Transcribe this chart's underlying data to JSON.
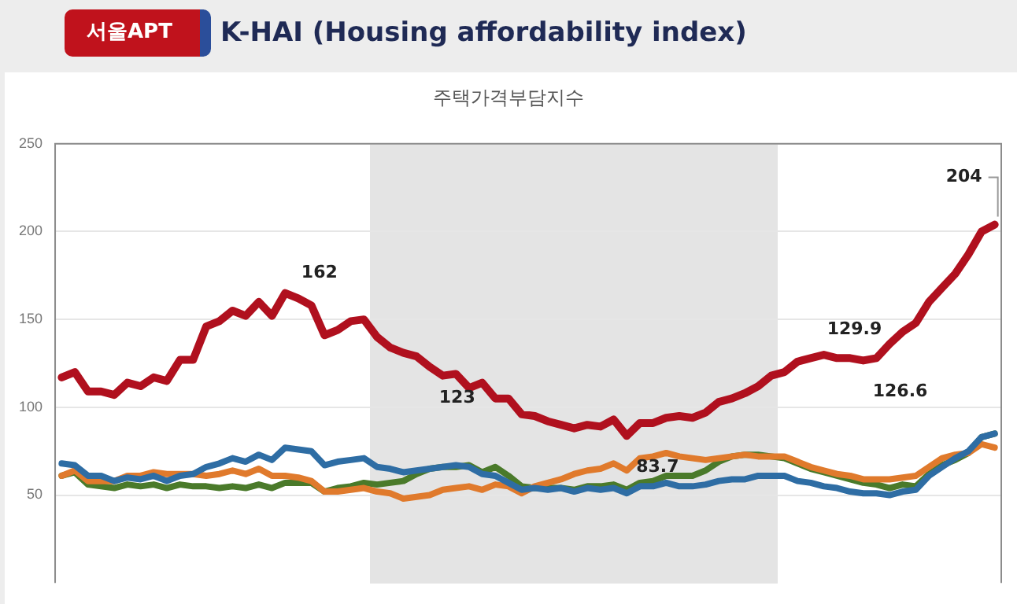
{
  "chart_data": {
    "type": "line",
    "title": "K-HAI (Housing affordability index)",
    "subtitle": "주택가격부담지수",
    "categories": [
      null,
      null,
      null,
      null,
      null,
      null,
      null,
      null,
      null,
      null,
      null,
      null,
      null,
      null,
      null,
      null,
      null,
      null,
      null,
      null,
      null,
      null,
      null,
      null,
      null,
      null,
      null,
      null,
      null,
      null,
      null,
      null,
      null,
      null,
      null,
      null,
      null,
      null,
      null,
      null,
      null,
      null,
      null,
      null,
      null,
      null,
      null,
      null,
      null,
      null,
      null,
      null,
      null,
      null,
      null,
      null,
      null,
      null,
      null,
      null,
      null,
      null,
      null,
      null,
      null,
      null,
      null,
      null,
      null,
      null,
      null,
      null
    ],
    "series": [
      {
        "color": "#b0101e",
        "values": [
          117,
          120,
          109,
          109,
          107,
          114,
          112,
          117,
          115,
          127,
          127,
          146,
          149,
          155,
          152,
          160,
          152,
          165,
          162,
          158,
          141,
          144,
          149,
          150,
          140,
          134,
          131,
          129,
          123,
          118,
          119,
          111,
          114,
          105,
          105,
          96,
          95,
          92,
          90,
          88,
          90,
          89,
          93,
          83.7,
          91,
          91,
          94,
          95,
          94,
          97,
          103,
          105,
          108,
          112,
          118,
          120,
          126,
          128,
          129.9,
          128,
          128,
          126.6,
          128,
          136,
          143,
          148,
          160,
          168,
          176,
          187,
          200,
          204
        ],
        "value_labels": [
          null,
          null,
          null,
          null,
          null,
          null,
          null,
          null,
          null,
          null,
          null,
          null,
          null,
          null,
          null,
          null,
          null,
          null,
          "162",
          null,
          null,
          null,
          null,
          null,
          null,
          null,
          null,
          null,
          "123",
          null,
          null,
          null,
          null,
          null,
          null,
          null,
          null,
          null,
          null,
          null,
          null,
          null,
          null,
          "83.7",
          null,
          null,
          null,
          null,
          null,
          null,
          null,
          null,
          null,
          null,
          null,
          null,
          null,
          null,
          "129.9",
          null,
          null,
          "126.6",
          null,
          null,
          null,
          null,
          null,
          null,
          null,
          null,
          null,
          "204"
        ]
      },
      {
        "color": "#2e6da4",
        "values": [
          68,
          67,
          61,
          61,
          58,
          60,
          59,
          61,
          58,
          61,
          62,
          66,
          68,
          71,
          69,
          73,
          70,
          77,
          76,
          75,
          67,
          69,
          70,
          71,
          66,
          65,
          63,
          64,
          65,
          66,
          67,
          66,
          62,
          61,
          57,
          53,
          54,
          53,
          54,
          52,
          54,
          53,
          54,
          51,
          55,
          55,
          57,
          55,
          55,
          56,
          58,
          59,
          59,
          61,
          61,
          61,
          58,
          57,
          55,
          54,
          52,
          51,
          51,
          50,
          52,
          53,
          61,
          66,
          71,
          75,
          83,
          85
        ]
      },
      {
        "color": "#e07a2c",
        "values": [
          61,
          64,
          58,
          58,
          58,
          61,
          61,
          63,
          62,
          62,
          62,
          61,
          62,
          64,
          62,
          65,
          61,
          61,
          60,
          58,
          52,
          52,
          53,
          54,
          52,
          51,
          48,
          49,
          50,
          53,
          54,
          55,
          53,
          56,
          55,
          51,
          55,
          57,
          59,
          62,
          64,
          65,
          68,
          64,
          71,
          72,
          74,
          72,
          71,
          70,
          71,
          72,
          73,
          72,
          72,
          72,
          69,
          66,
          64,
          62,
          61,
          59,
          59,
          59,
          60,
          61,
          66,
          71,
          73,
          74,
          79,
          77
        ]
      },
      {
        "color": "#4a7a2a",
        "values": [
          61,
          63,
          56,
          55,
          54,
          56,
          55,
          56,
          54,
          56,
          55,
          55,
          54,
          55,
          54,
          56,
          54,
          57,
          57,
          57,
          52,
          54,
          55,
          57,
          56,
          57,
          58,
          62,
          65,
          66,
          66,
          67,
          63,
          66,
          61,
          55,
          54,
          54,
          54,
          53,
          55,
          55,
          56,
          53,
          57,
          58,
          61,
          61,
          61,
          64,
          69,
          72,
          73,
          73,
          72,
          71,
          68,
          65,
          63,
          61,
          59,
          57,
          56,
          54,
          56,
          55,
          62,
          67,
          70,
          74,
          83,
          85
        ]
      }
    ],
    "ylim": [
      0,
      250
    ],
    "yticks": [
      50,
      100,
      150,
      200,
      250
    ],
    "grid": "y",
    "tick_labels": "y",
    "annotations": [
      "서울APT"
    ]
  }
}
